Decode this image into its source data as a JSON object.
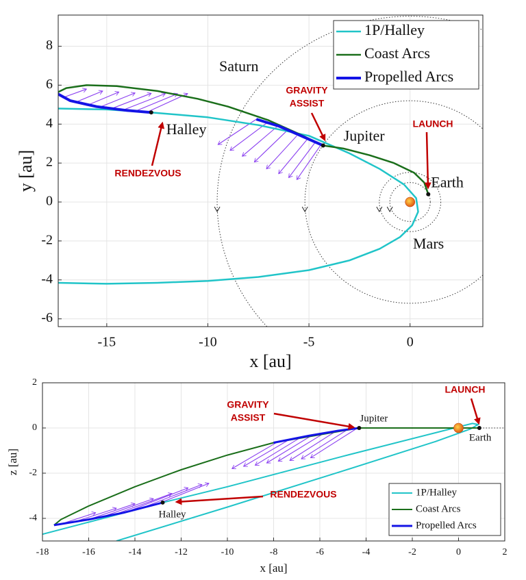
{
  "chart_data": [
    {
      "type": "line",
      "xlabel": "x [au]",
      "ylabel": "y [au]",
      "xlim": [
        -17.4,
        3.6
      ],
      "ylim": [
        -6.4,
        9.6
      ],
      "xticks": [
        -15,
        -10,
        -5,
        0
      ],
      "yticks": [
        -6,
        -4,
        -2,
        0,
        2,
        4,
        6,
        8
      ],
      "grid": true,
      "legend": "upper right",
      "series": [
        {
          "name": "1P/Halley",
          "color": "#20c4c8",
          "linewidth": 2.5,
          "x": [
            -17.4,
            -15,
            -12.8,
            -10,
            -7.5,
            -5,
            -3,
            -1.5,
            -0.3,
            0.3,
            0.4,
            0.1,
            -0.5,
            -1.5,
            -3,
            -5,
            -7.5,
            -10,
            -12.5,
            -15,
            -17.4
          ],
          "y": [
            4.8,
            4.75,
            4.6,
            4.35,
            3.95,
            3.4,
            2.5,
            1.7,
            0.9,
            0.2,
            -0.5,
            -1.2,
            -1.8,
            -2.4,
            -3.0,
            -3.5,
            -3.85,
            -4.05,
            -4.15,
            -4.2,
            -4.15
          ]
        },
        {
          "name": "Coast Arcs",
          "color": "#1a6e1a",
          "linewidth": 2.5,
          "x": [
            0.9,
            0.7,
            0.2,
            -0.8,
            -2,
            -3.3,
            -4.3,
            -5.5,
            -7,
            -9,
            -10.5,
            -12.5,
            -14.5,
            -16,
            -17,
            -17.5
          ],
          "y": [
            0.4,
            1.0,
            1.5,
            2.0,
            2.4,
            2.75,
            2.9,
            3.5,
            4.2,
            4.9,
            5.3,
            5.7,
            5.95,
            6.0,
            5.85,
            5.6
          ]
        },
        {
          "name": "Propelled Arcs",
          "color": "#1414e6",
          "linewidth": 4,
          "x": [
            -17.5,
            -16.8,
            -15.5,
            -14,
            -12.8,
            null,
            -7.6,
            -6.5,
            -5.5,
            -4.3
          ],
          "y": [
            5.6,
            5.2,
            4.9,
            4.7,
            4.6,
            null,
            4.25,
            3.9,
            3.45,
            2.9
          ]
        }
      ],
      "thrust": {
        "color": "#8a3ff0",
        "x": [
          -17.2,
          -16.6,
          -16,
          -15.4,
          -14.8,
          -14.2,
          -13.6,
          -13.0,
          -7.6,
          -7.1,
          -6.6,
          -6.1,
          -5.6,
          -5.1,
          -4.7,
          -4.4
        ],
        "y": [
          5.35,
          5.1,
          4.95,
          4.85,
          4.78,
          4.72,
          4.66,
          4.62,
          4.25,
          4.05,
          3.85,
          3.65,
          3.4,
          3.2,
          3.05,
          2.95
        ],
        "dx": [
          1.2,
          1.4,
          1.6,
          1.8,
          2.0,
          2.1,
          2.1,
          2.0,
          -1.9,
          -1.8,
          -1.7,
          -1.6,
          -1.5,
          -1.4,
          -1.3,
          -1.2
        ],
        "dy": [
          0.45,
          0.6,
          0.7,
          0.75,
          0.8,
          0.85,
          0.9,
          0.95,
          -1.3,
          -1.4,
          -1.5,
          -1.6,
          -1.7,
          -1.75,
          -1.8,
          -1.8
        ]
      },
      "orbits": [
        {
          "r": 1.0
        },
        {
          "r": 1.52,
          "label": "Mars"
        },
        {
          "r": 5.2
        },
        {
          "r": 9.54,
          "label": "Saturn"
        }
      ],
      "sun": {
        "x": 0,
        "y": 0
      },
      "bodies": [
        {
          "label": "Earth",
          "x": 0.9,
          "y": 0.4
        },
        {
          "label": "Jupiter",
          "x": -4.3,
          "y": 2.9
        },
        {
          "label": "Halley",
          "x": -12.8,
          "y": 4.6
        }
      ],
      "annotations": [
        {
          "lines": [
            "GRAVITY",
            "ASSIST"
          ]
        },
        {
          "lines": [
            "LAUNCH"
          ]
        },
        {
          "lines": [
            "RENDEZVOUS"
          ]
        }
      ]
    },
    {
      "type": "line",
      "xlabel": "x [au]",
      "ylabel": "z [au]",
      "xlim": [
        -18,
        2
      ],
      "ylim": [
        -5,
        2
      ],
      "xticks": [
        -18,
        -16,
        -14,
        -12,
        -10,
        -8,
        -6,
        -4,
        -2,
        0,
        2
      ],
      "yticks": [
        -4,
        -2,
        0,
        2
      ],
      "grid": true,
      "legend": "lower right",
      "series": [
        {
          "name": "1P/Halley",
          "color": "#20c4c8",
          "linewidth": 2,
          "x": [
            -14.8,
            -10,
            -5,
            -1,
            0.5,
            0.85,
            0.6,
            0,
            -5,
            -10,
            -12.8,
            -15,
            -18
          ],
          "y": [
            -5,
            -3.5,
            -1.9,
            -0.6,
            -0.05,
            0.15,
            0.2,
            0.05,
            -1.25,
            -2.6,
            -3.3,
            -3.9,
            -4.7
          ]
        },
        {
          "name": "Coast Arcs",
          "color": "#1a6e1a",
          "linewidth": 2,
          "x": [
            0.9,
            -4.3,
            -6,
            -8,
            -10,
            -12,
            -14,
            -16,
            -17.2,
            -17.5
          ],
          "y": [
            0,
            0,
            -0.3,
            -0.65,
            -1.2,
            -1.85,
            -2.6,
            -3.45,
            -4.05,
            -4.3
          ]
        },
        {
          "name": "Propelled Arcs",
          "color": "#1414e6",
          "linewidth": 3,
          "x": [
            -17.5,
            -16,
            -14.5,
            -12.8,
            null,
            -8,
            -6.5,
            -5.2,
            -4.3
          ],
          "y": [
            -4.3,
            -4.05,
            -3.75,
            -3.3,
            null,
            -0.65,
            -0.35,
            -0.12,
            0
          ]
        }
      ],
      "thrust": {
        "color": "#8a3ff0",
        "x": [
          -17.2,
          -16.6,
          -16,
          -15.4,
          -14.8,
          -14.2,
          -13.6,
          -13.0,
          -7.8,
          -7.3,
          -6.8,
          -6.3,
          -5.8,
          -5.3,
          -4.8,
          -4.4
        ],
        "y": [
          -4.25,
          -4.15,
          -4.05,
          -3.93,
          -3.8,
          -3.65,
          -3.5,
          -3.35,
          -0.6,
          -0.5,
          -0.4,
          -0.3,
          -0.22,
          -0.14,
          -0.07,
          -0.02
        ],
        "dx": [
          1.5,
          1.8,
          2.0,
          2.2,
          2.4,
          2.5,
          2.5,
          2.2,
          -2.0,
          -2.0,
          -2.0,
          -2.0,
          -2.0,
          -2.0,
          -2.0,
          -2.0
        ],
        "dy": [
          0.5,
          0.6,
          0.7,
          0.8,
          0.9,
          1.0,
          1.0,
          0.9,
          -1.2,
          -1.2,
          -1.25,
          -1.25,
          -1.25,
          -1.3,
          -1.3,
          -1.3
        ]
      },
      "sun": {
        "x": 0,
        "y": 0
      },
      "bodies": [
        {
          "label": "Earth",
          "x": 0.9,
          "y": 0
        },
        {
          "label": "Jupiter",
          "x": -4.3,
          "y": 0
        },
        {
          "label": "Halley",
          "x": -12.8,
          "y": -3.3
        }
      ],
      "annotations": [
        {
          "lines": [
            "GRAVITY",
            "ASSIST"
          ]
        },
        {
          "lines": [
            "LAUNCH"
          ]
        },
        {
          "lines": [
            "RENDEZVOUS"
          ]
        }
      ]
    }
  ]
}
